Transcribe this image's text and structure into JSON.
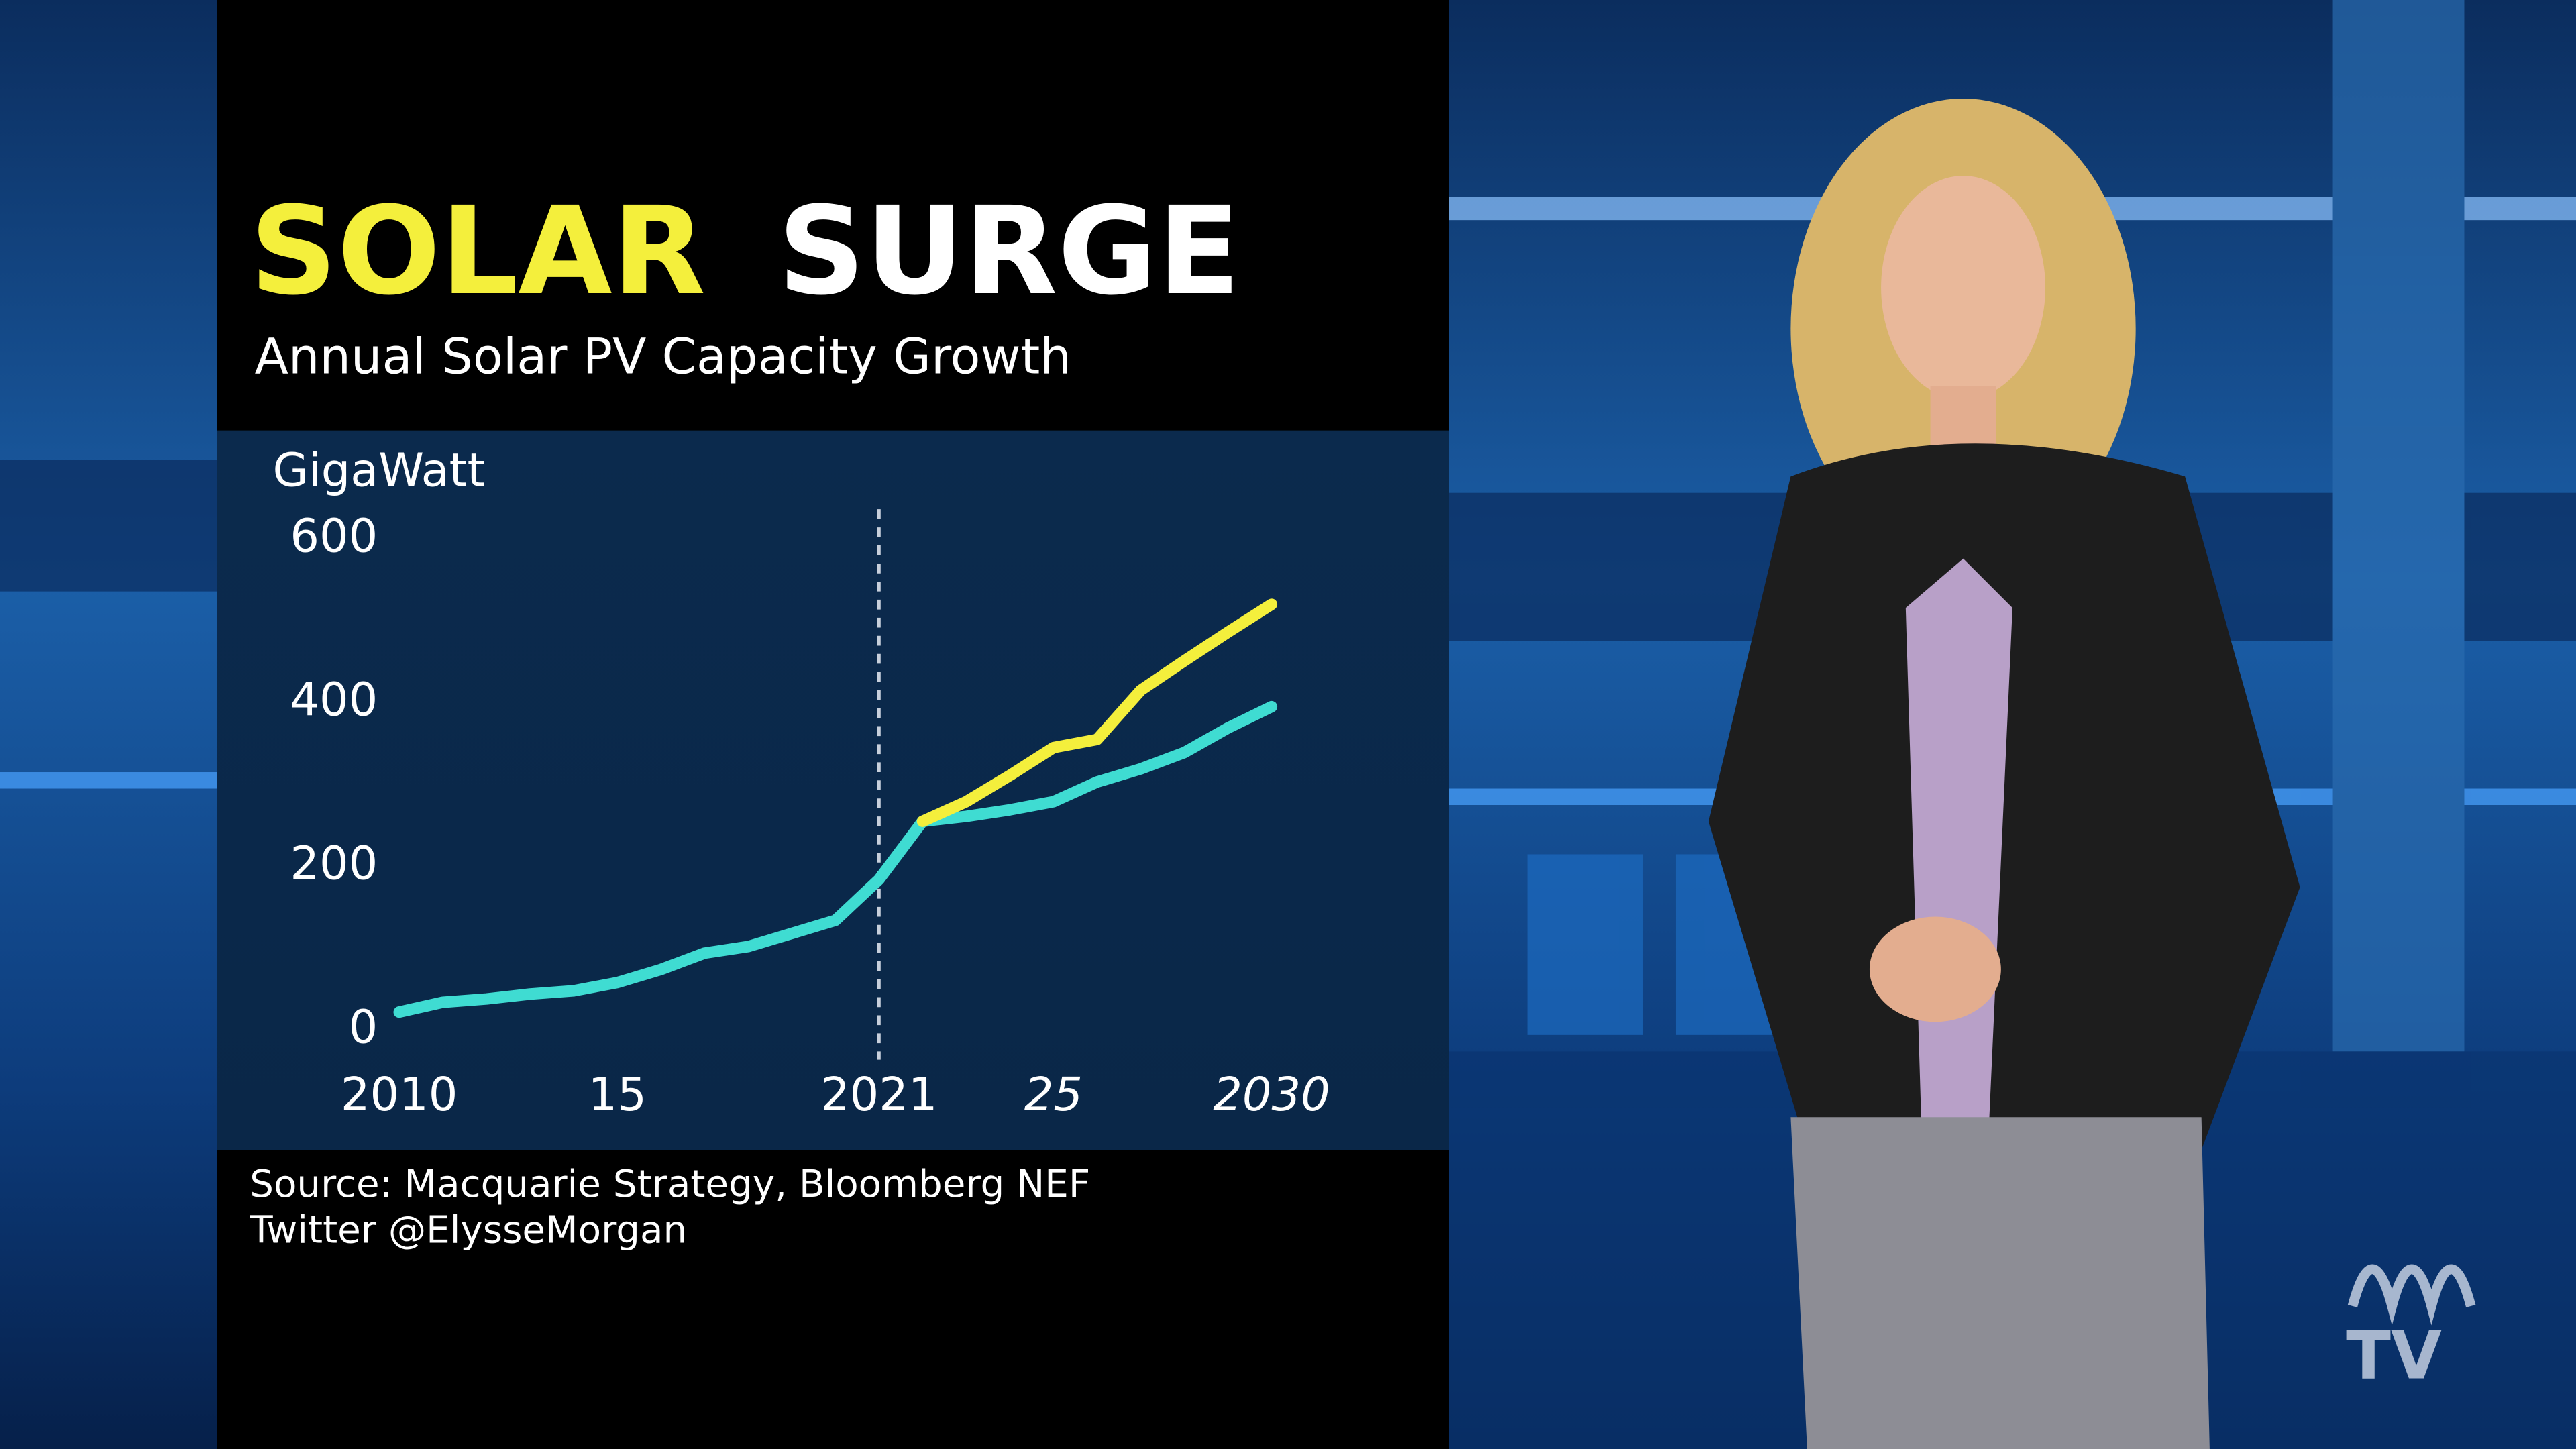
{
  "chart_data": {
    "type": "line",
    "title": [
      "SOLAR",
      "SURGE"
    ],
    "title_colors": [
      "#f4ef3c",
      "#ffffff"
    ],
    "subtitle": "Annual Solar PV Capacity Growth",
    "y_label": "GigaWatt",
    "x": [
      2010,
      2011,
      2012,
      2013,
      2014,
      2015,
      2016,
      2017,
      2018,
      2019,
      2020,
      2021,
      2022,
      2023,
      2024,
      2025,
      2026,
      2027,
      2028,
      2029,
      2030
    ],
    "series": [
      {
        "color": "#3fdcd2",
        "values": [
          22,
          34,
          38,
          44,
          48,
          58,
          74,
          94,
          102,
          118,
          134,
          184,
          255,
          261,
          269,
          279,
          303,
          319,
          339,
          369,
          395
        ]
      },
      {
        "color": "#f4ef3c",
        "values": [
          null,
          null,
          null,
          null,
          null,
          null,
          null,
          null,
          null,
          null,
          null,
          null,
          255,
          279,
          311,
          345,
          355,
          415,
          451,
          486,
          520
        ]
      }
    ],
    "xlim": [
      2010,
      2030
    ],
    "ylim": [
      0,
      600
    ],
    "xticks": [
      2010,
      {
        "value": 2015,
        "label": "15"
      },
      2021,
      {
        "value": 2025,
        "label": "25"
      },
      2030
    ],
    "yticks": [
      0,
      200,
      400,
      600
    ],
    "vline": 2021,
    "grid": false,
    "source": [
      "Source: Macquarie Strategy, Bloomberg NEF",
      "Twitter @ElysseMorgan"
    ],
    "logo": "TV"
  }
}
